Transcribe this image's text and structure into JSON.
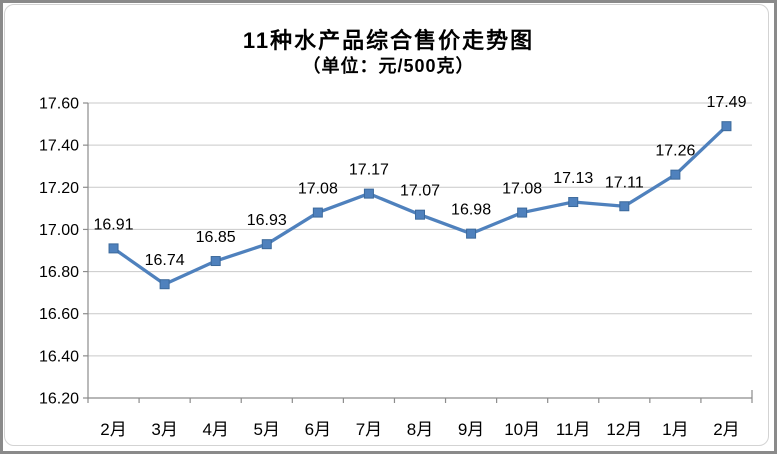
{
  "chart_data": {
    "type": "line",
    "title": "11种水产品综合售价走势图",
    "subtitle": "（单位：元/500克）",
    "categories": [
      "2月",
      "3月",
      "4月",
      "5月",
      "6月",
      "7月",
      "8月",
      "9月",
      "10月",
      "11月",
      "12月",
      "1月",
      "2月"
    ],
    "values": [
      16.91,
      16.74,
      16.85,
      16.93,
      17.08,
      17.17,
      17.07,
      16.98,
      17.08,
      17.13,
      17.11,
      17.26,
      17.49
    ],
    "data_labels": [
      "16.91",
      "16.74",
      "16.85",
      "16.93",
      "17.08",
      "17.17",
      "17.07",
      "16.98",
      "17.08",
      "17.13",
      "17.11",
      "17.26",
      "17.49"
    ],
    "ylim": [
      16.2,
      17.6
    ],
    "ytick_step": 0.2,
    "ytick_labels": [
      "16.20",
      "16.40",
      "16.60",
      "16.80",
      "17.00",
      "17.20",
      "17.40",
      "17.60"
    ],
    "xlabel": "",
    "ylabel": "",
    "grid": true,
    "legend": "none",
    "marker": "square",
    "colors": {
      "line": "#4F81BD",
      "marker_fill": "#4F81BD",
      "marker_border": "#3C699B",
      "grid": "#C9C9C9",
      "axis": "#8C8C8C",
      "text": "#000000",
      "frame": "#8A8A8A",
      "chart_border": "#D3D3D3"
    }
  }
}
